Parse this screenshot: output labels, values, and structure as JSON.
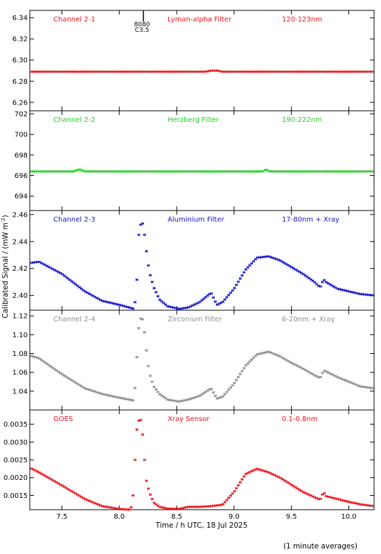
{
  "footer_note": "(1 minute averages)",
  "chart_data": {
    "type": "scatter",
    "xlabel": "Time / h UTC, 18 Jul 2025",
    "ylabel": "Calibrated Signal / (mW m",
    "ylabel_sup": "-2",
    "ylabel_end": ")",
    "xlim": [
      7.22,
      10.22
    ],
    "xticks": [
      7.5,
      8.0,
      8.5,
      9.0,
      9.5,
      10.0
    ],
    "xticklabels": [
      "7.5",
      "8.0",
      "8.5",
      "9.0",
      "9.5",
      "10.0"
    ],
    "marker_annotation": {
      "x": 8.21,
      "lines": [
        "8080",
        "C3.5"
      ]
    },
    "panels": [
      {
        "name": "Channel 2-1",
        "filter": "Lyman-alpha Filter",
        "band": "120-123nm",
        "color": "#e8141c",
        "ylim": [
          6.252,
          6.347
        ],
        "yticks": [
          6.26,
          6.28,
          6.3,
          6.32,
          6.34
        ],
        "yticklabels": [
          "6.26",
          "6.28",
          "6.30",
          "6.32",
          "6.34"
        ],
        "series": {
          "t": [
            7.22,
            8.75,
            8.8,
            8.85,
            8.9,
            10.22
          ],
          "v": [
            6.289,
            6.289,
            6.29,
            6.29,
            6.289,
            6.289
          ]
        }
      },
      {
        "name": "Channel 2-2",
        "filter": "Herzberg Filter",
        "band": "190-222nm",
        "color": "#22d022",
        "ylim": [
          692.6,
          702.3
        ],
        "yticks": [
          694,
          696,
          698,
          700,
          702
        ],
        "yticklabels": [
          "694",
          "696",
          "698",
          "700",
          "702"
        ],
        "series": {
          "t": [
            7.22,
            7.6,
            7.65,
            7.7,
            9.25,
            9.28,
            9.31,
            10.22
          ],
          "v": [
            696.4,
            696.4,
            696.6,
            696.4,
            696.4,
            696.6,
            696.4,
            696.4
          ]
        }
      },
      {
        "name": "Channel 2-3",
        "filter": "Aluminium Filter",
        "band": "17-80nm + Xray",
        "color": "#1414c8",
        "ylim": [
          2.389,
          2.463
        ],
        "yticks": [
          2.4,
          2.42,
          2.44,
          2.46
        ],
        "yticklabels": [
          "2.40",
          "2.42",
          "2.44",
          "2.46"
        ],
        "series": {
          "t": [
            7.22,
            7.3,
            7.5,
            7.7,
            7.85,
            8.0,
            8.13,
            8.15,
            8.17,
            8.19,
            8.21,
            8.23,
            8.26,
            8.3,
            8.35,
            8.42,
            8.52,
            8.6,
            8.7,
            8.8,
            8.85,
            8.9,
            9.0,
            9.1,
            9.2,
            9.3,
            9.4,
            9.5,
            9.6,
            9.7,
            9.75,
            9.78,
            9.8,
            9.9,
            10.0,
            10.1,
            10.22
          ],
          "v": [
            2.424,
            2.425,
            2.416,
            2.403,
            2.396,
            2.393,
            2.39,
            2.405,
            2.445,
            2.454,
            2.453,
            2.437,
            2.418,
            2.406,
            2.397,
            2.392,
            2.39,
            2.391,
            2.395,
            2.402,
            2.393,
            2.395,
            2.405,
            2.419,
            2.428,
            2.429,
            2.426,
            2.421,
            2.416,
            2.41,
            2.406,
            2.412,
            2.41,
            2.405,
            2.403,
            2.401,
            2.4
          ]
        }
      },
      {
        "name": "Channel 2-4",
        "filter": "Zirconium Filter",
        "band": "6-20nm + Xray",
        "color": "#8c8c8c",
        "ylim": [
          1.02,
          1.126
        ],
        "yticks": [
          1.04,
          1.06,
          1.08,
          1.1,
          1.12
        ],
        "yticklabels": [
          "1.04",
          "1.06",
          "1.08",
          "1.10",
          "1.12"
        ],
        "series": {
          "t": [
            7.22,
            7.3,
            7.5,
            7.7,
            7.85,
            8.0,
            8.13,
            8.15,
            8.17,
            8.19,
            8.21,
            8.23,
            8.26,
            8.3,
            8.35,
            8.42,
            8.52,
            8.6,
            8.7,
            8.8,
            8.85,
            8.9,
            9.0,
            9.1,
            9.2,
            9.3,
            9.4,
            9.5,
            9.6,
            9.7,
            9.75,
            9.78,
            9.8,
            9.9,
            10.0,
            10.1,
            10.22
          ],
          "v": [
            1.078,
            1.075,
            1.058,
            1.043,
            1.037,
            1.033,
            1.03,
            1.07,
            1.107,
            1.119,
            1.115,
            1.09,
            1.06,
            1.045,
            1.037,
            1.031,
            1.029,
            1.031,
            1.035,
            1.043,
            1.032,
            1.034,
            1.048,
            1.067,
            1.079,
            1.082,
            1.077,
            1.07,
            1.064,
            1.057,
            1.054,
            1.062,
            1.061,
            1.055,
            1.05,
            1.045,
            1.043
          ]
        }
      },
      {
        "name": "GOES",
        "filter": "Xray Sensor",
        "band": "0.1-0.8nm",
        "color": "#e8141c",
        "ylim": [
          0.0011,
          0.0039
        ],
        "yticks": [
          0.0015,
          0.002,
          0.0025,
          0.003,
          0.0035
        ],
        "yticklabels": [
          "0.0015",
          "0.0020",
          "0.0025",
          "0.0030",
          "0.0035"
        ],
        "series": {
          "t": [
            7.22,
            7.3,
            7.5,
            7.7,
            7.85,
            8.0,
            8.1,
            8.12,
            8.15,
            8.17,
            8.19,
            8.21,
            8.23,
            8.26,
            8.3,
            8.35,
            8.42,
            8.52,
            8.6,
            8.7,
            8.8,
            8.9,
            9.0,
            9.1,
            9.2,
            9.3,
            9.4,
            9.5,
            9.6,
            9.7,
            9.75,
            9.78,
            9.8,
            9.9,
            10.0,
            10.1,
            10.22
          ],
          "v": [
            0.00228,
            0.00215,
            0.00178,
            0.0014,
            0.0012,
            0.00112,
            0.0011,
            0.0015,
            0.0033,
            0.0036,
            0.00362,
            0.003,
            0.002,
            0.0016,
            0.0013,
            0.00118,
            0.00113,
            0.00112,
            0.00118,
            0.00118,
            0.0012,
            0.00124,
            0.0016,
            0.0021,
            0.00225,
            0.00215,
            0.002,
            0.0018,
            0.0016,
            0.00145,
            0.00138,
            0.0016,
            0.00148,
            0.0014,
            0.00132,
            0.00125,
            0.0012
          ]
        }
      }
    ]
  }
}
